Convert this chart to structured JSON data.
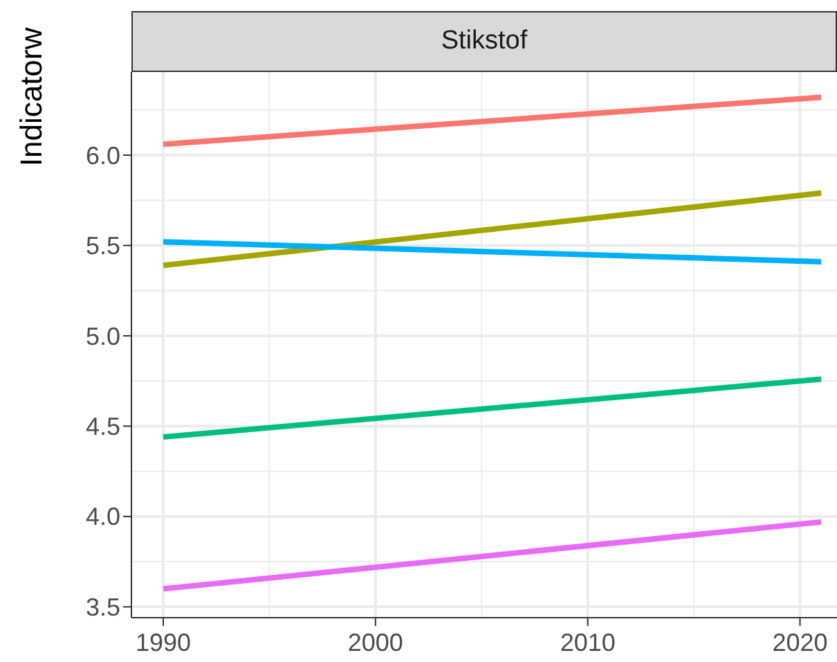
{
  "chart_data": {
    "type": "line",
    "title": "Stikstof",
    "ylabel": "Indicatorw",
    "x": [
      1990,
      2021
    ],
    "series": [
      {
        "color": "#f8766d",
        "values": [
          6.06,
          6.32
        ]
      },
      {
        "color": "#a3a500",
        "values": [
          5.39,
          5.79
        ]
      },
      {
        "color": "#00b0f6",
        "values": [
          5.52,
          5.41
        ]
      },
      {
        "color": "#00bf7d",
        "values": [
          4.44,
          4.76
        ]
      },
      {
        "color": "#e76bf3",
        "values": [
          3.6,
          3.97
        ]
      }
    ],
    "xlim": [
      1988.5,
      2022.2
    ],
    "xticks": [
      1990,
      {
        "value": 1995,
        "label": null
      },
      2000,
      {
        "value": 2005,
        "label": null
      },
      2010,
      {
        "value": 2015,
        "label": null
      },
      2020
    ],
    "ylim": [
      3.44,
      6.46
    ],
    "yticks": [
      {
        "value": 3.5,
        "label": "3.5"
      },
      {
        "value": 3.75,
        "label": null
      },
      {
        "value": 4.0,
        "label": "4.0"
      },
      {
        "value": 4.25,
        "label": null
      },
      {
        "value": 4.5,
        "label": "4.5"
      },
      {
        "value": 4.75,
        "label": null
      },
      {
        "value": 5.0,
        "label": "5.0"
      },
      {
        "value": 5.25,
        "label": null
      },
      {
        "value": 5.5,
        "label": "5.5"
      },
      {
        "value": 5.75,
        "label": null
      },
      {
        "value": 6.0,
        "label": "6.0"
      },
      {
        "value": 6.25,
        "label": null
      }
    ],
    "grid": true,
    "marker": "none",
    "line_style": "solid"
  }
}
